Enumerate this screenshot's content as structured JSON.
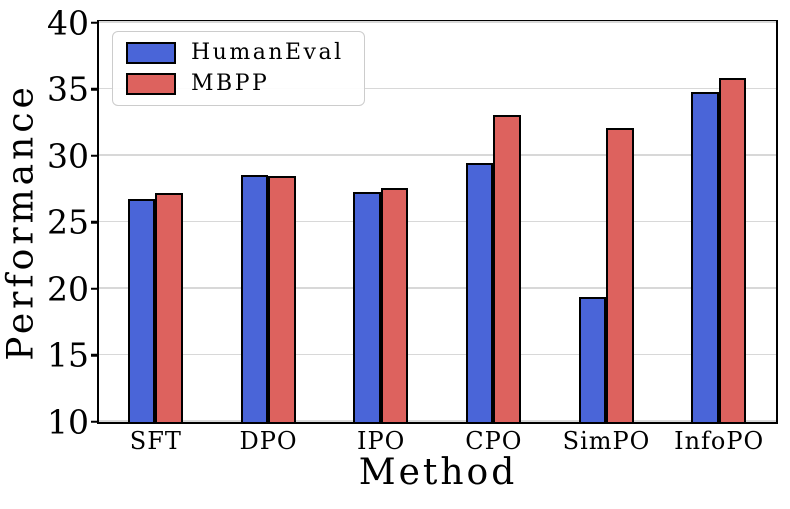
{
  "chart_data": {
    "type": "bar",
    "title": "",
    "xlabel": "Method",
    "ylabel": "Performance",
    "categories": [
      "SFT",
      "DPO",
      "IPO",
      "CPO",
      "SimPO",
      "InfoPO"
    ],
    "series": [
      {
        "name": "HumanEval",
        "color": "#4a65d8",
        "values": [
          26.8,
          28.6,
          27.3,
          29.5,
          19.4,
          34.8
        ]
      },
      {
        "name": "MBPP",
        "color": "#dd625e",
        "values": [
          27.2,
          28.5,
          27.6,
          33.1,
          32.1,
          35.9
        ]
      }
    ],
    "ylim": [
      10,
      40
    ],
    "yticks": [
      10,
      15,
      20,
      25,
      30,
      35,
      40
    ],
    "grid": true,
    "gridline_color": "#d8d8d8",
    "bar_edge_color": "#000000",
    "axis_color": "#000000",
    "legend": {
      "position": "upper-left",
      "entries": [
        "HumanEval",
        "MBPP"
      ]
    }
  }
}
